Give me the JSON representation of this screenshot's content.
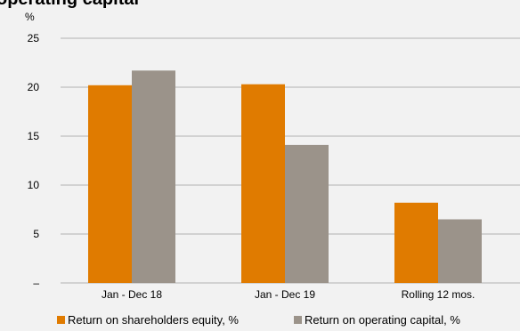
{
  "chart_data": {
    "type": "bar",
    "title": "operating capital",
    "ylabel": "%",
    "ylim": [
      0,
      25
    ],
    "yticks": [
      25,
      20,
      15,
      10,
      5
    ],
    "zero_tick_label": "–",
    "categories": [
      "Jan - Dec 18",
      "Jan - Dec 19",
      "Rolling 12 mos."
    ],
    "series": [
      {
        "name": "Return on shareholders equity, %",
        "values": [
          20.2,
          20.3,
          8.2
        ],
        "color": "#e07b00"
      },
      {
        "name": "Return on operating capital, %",
        "values": [
          21.7,
          14.1,
          6.5
        ],
        "color": "#9b938a"
      }
    ],
    "grid": true,
    "legend_position": "bottom"
  },
  "colors": {
    "background": "#f2f2f2",
    "gridline": "#b3b3b3"
  }
}
